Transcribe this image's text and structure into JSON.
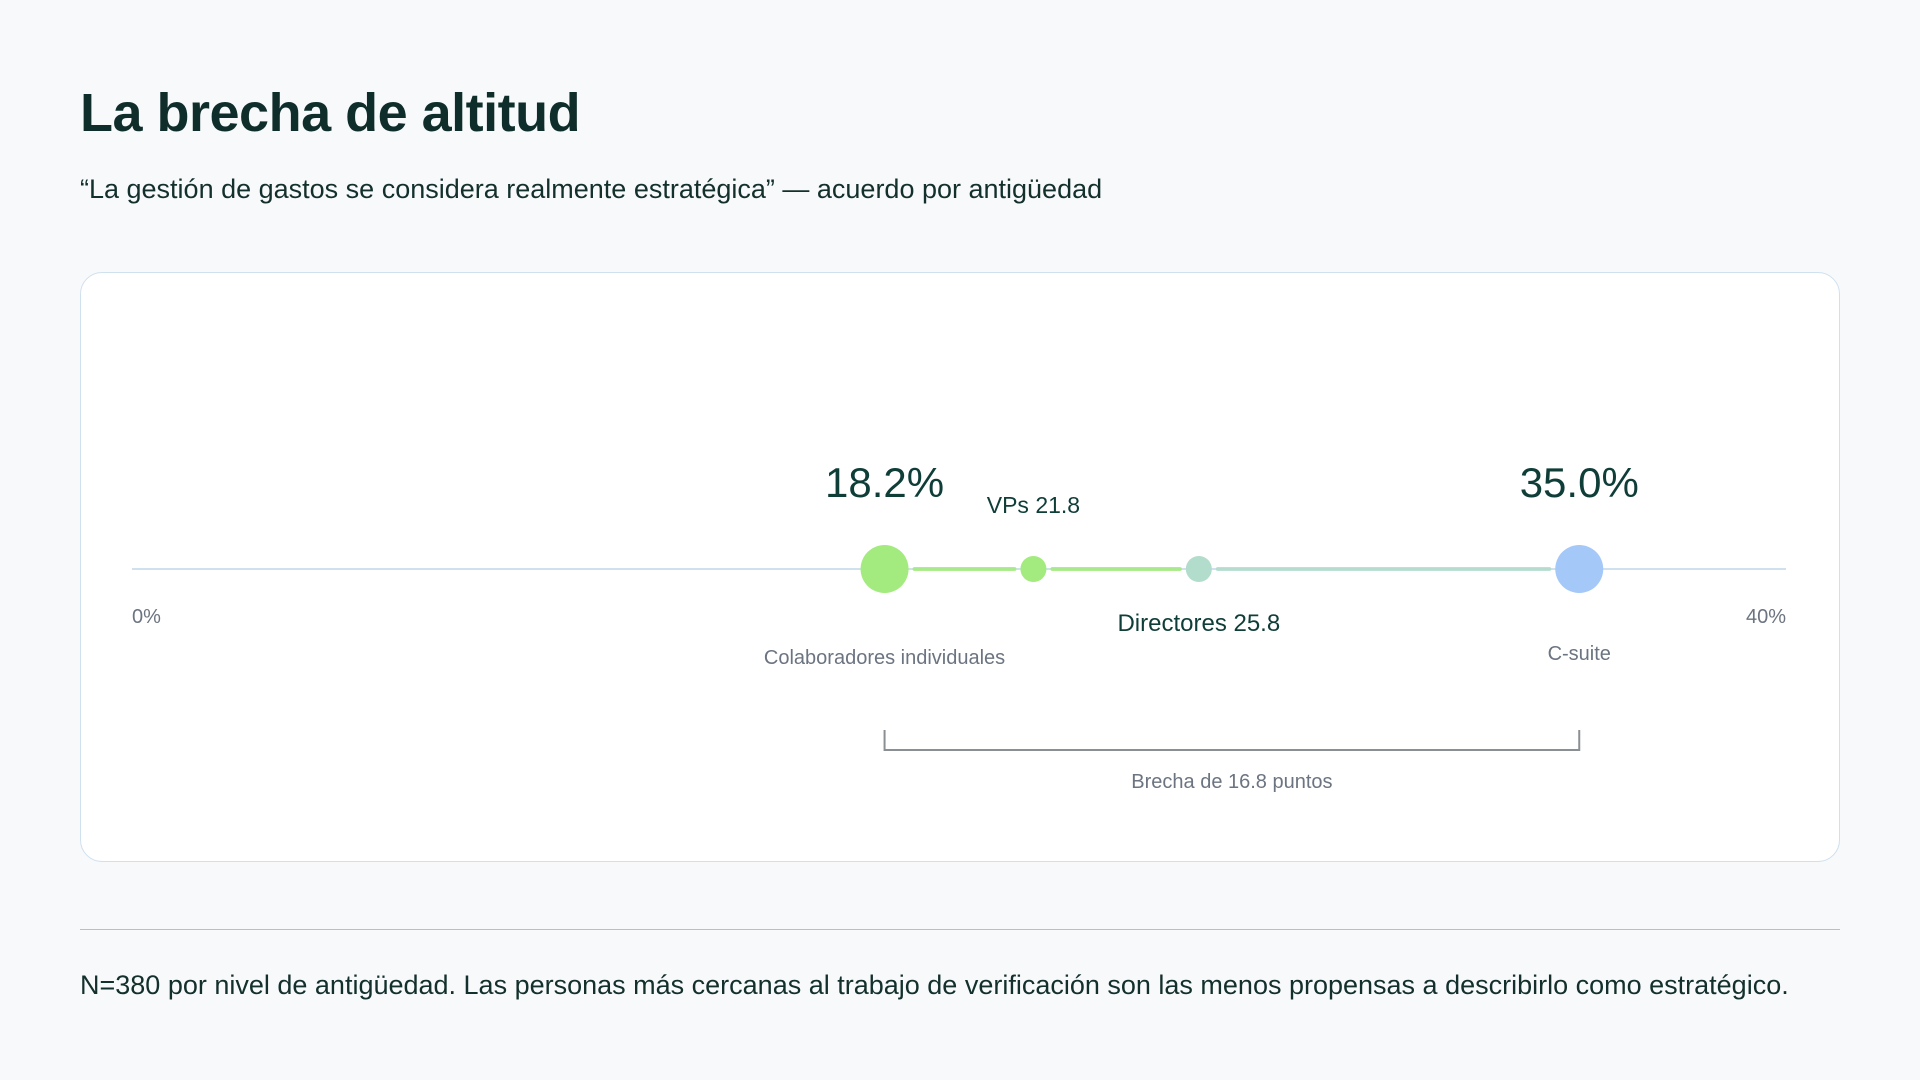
{
  "title": "La brecha de altitud",
  "subtitle": "“La gestión de gastos se considera realmente estratégica” — acuerdo por antigüedad",
  "footnote": "N=380 por nivel de antigüedad. Las personas más cercanas al trabajo de verificación son las menos propensas a describirlo como estratégico.",
  "chart_data": {
    "type": "dot-range",
    "xlim": [
      0,
      40
    ],
    "axis_labels": {
      "min": "0%",
      "max": "40%"
    },
    "points": [
      {
        "name": "Colaboradores individuales",
        "value": 18.2,
        "value_label": "18.2%",
        "label": "Colaboradores individuales",
        "color": "#a3eb7e"
      },
      {
        "name": "VPs",
        "value": 21.8,
        "label": "VPs 21.8",
        "color": "#a3eb7e"
      },
      {
        "name": "Directores",
        "value": 25.8,
        "label": "Directores 25.8",
        "color": "#b2dccb"
      },
      {
        "name": "C-suite",
        "value": 35.0,
        "value_label": "35.0%",
        "label": "C-suite",
        "color": "#a4c8f8"
      }
    ],
    "bracket": {
      "from": 18.2,
      "to": 35.0,
      "label": "Brecha de 16.8 puntos"
    },
    "colors": {
      "axis": "#cfe0ef",
      "text_dark": "#0f3d38",
      "text_muted": "#6b7480",
      "bracket": "#8a8f94"
    }
  }
}
